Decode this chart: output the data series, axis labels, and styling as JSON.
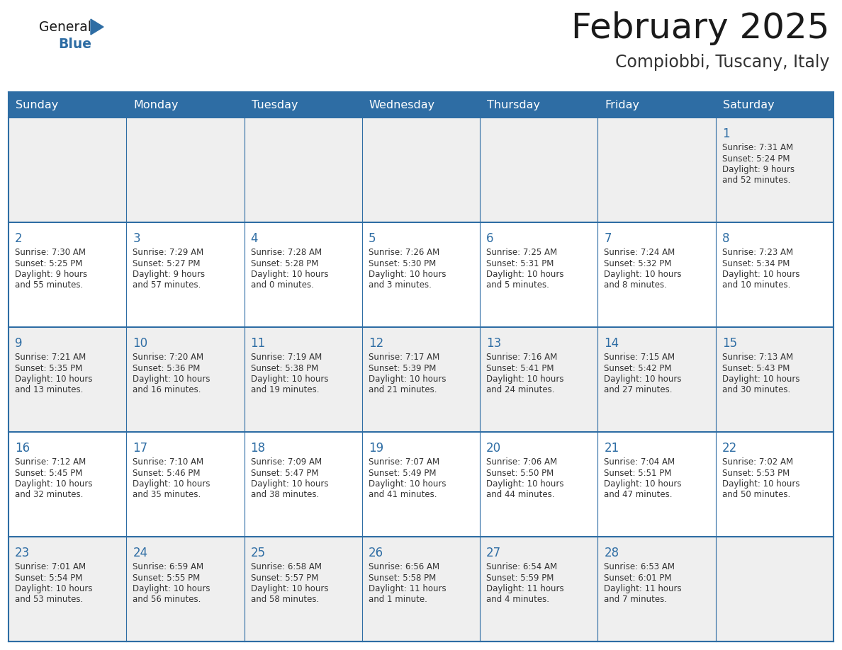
{
  "title": "February 2025",
  "subtitle": "Compiobbi, Tuscany, Italy",
  "days_of_week": [
    "Sunday",
    "Monday",
    "Tuesday",
    "Wednesday",
    "Thursday",
    "Friday",
    "Saturday"
  ],
  "header_bg": "#2E6DA4",
  "header_fg": "#FFFFFF",
  "row_bg_odd": "#EFEFEF",
  "row_bg_even": "#FFFFFF",
  "border_color": "#2E6DA4",
  "title_color": "#1a1a1a",
  "subtitle_color": "#333333",
  "day_num_color": "#2E6DA4",
  "text_color": "#333333",
  "logo_general_color": "#1a1a1a",
  "logo_blue_color": "#2E6DA4",
  "fig_width": 11.88,
  "fig_height": 9.18,
  "dpi": 100,
  "weeks": [
    [
      null,
      null,
      null,
      null,
      null,
      null,
      {
        "day": 1,
        "sunrise": "7:31 AM",
        "sunset": "5:24 PM",
        "daylight": "9 hours",
        "daylight2": "and 52 minutes."
      }
    ],
    [
      {
        "day": 2,
        "sunrise": "7:30 AM",
        "sunset": "5:25 PM",
        "daylight": "9 hours",
        "daylight2": "and 55 minutes."
      },
      {
        "day": 3,
        "sunrise": "7:29 AM",
        "sunset": "5:27 PM",
        "daylight": "9 hours",
        "daylight2": "and 57 minutes."
      },
      {
        "day": 4,
        "sunrise": "7:28 AM",
        "sunset": "5:28 PM",
        "daylight": "10 hours",
        "daylight2": "and 0 minutes."
      },
      {
        "day": 5,
        "sunrise": "7:26 AM",
        "sunset": "5:30 PM",
        "daylight": "10 hours",
        "daylight2": "and 3 minutes."
      },
      {
        "day": 6,
        "sunrise": "7:25 AM",
        "sunset": "5:31 PM",
        "daylight": "10 hours",
        "daylight2": "and 5 minutes."
      },
      {
        "day": 7,
        "sunrise": "7:24 AM",
        "sunset": "5:32 PM",
        "daylight": "10 hours",
        "daylight2": "and 8 minutes."
      },
      {
        "day": 8,
        "sunrise": "7:23 AM",
        "sunset": "5:34 PM",
        "daylight": "10 hours",
        "daylight2": "and 10 minutes."
      }
    ],
    [
      {
        "day": 9,
        "sunrise": "7:21 AM",
        "sunset": "5:35 PM",
        "daylight": "10 hours",
        "daylight2": "and 13 minutes."
      },
      {
        "day": 10,
        "sunrise": "7:20 AM",
        "sunset": "5:36 PM",
        "daylight": "10 hours",
        "daylight2": "and 16 minutes."
      },
      {
        "day": 11,
        "sunrise": "7:19 AM",
        "sunset": "5:38 PM",
        "daylight": "10 hours",
        "daylight2": "and 19 minutes."
      },
      {
        "day": 12,
        "sunrise": "7:17 AM",
        "sunset": "5:39 PM",
        "daylight": "10 hours",
        "daylight2": "and 21 minutes."
      },
      {
        "day": 13,
        "sunrise": "7:16 AM",
        "sunset": "5:41 PM",
        "daylight": "10 hours",
        "daylight2": "and 24 minutes."
      },
      {
        "day": 14,
        "sunrise": "7:15 AM",
        "sunset": "5:42 PM",
        "daylight": "10 hours",
        "daylight2": "and 27 minutes."
      },
      {
        "day": 15,
        "sunrise": "7:13 AM",
        "sunset": "5:43 PM",
        "daylight": "10 hours",
        "daylight2": "and 30 minutes."
      }
    ],
    [
      {
        "day": 16,
        "sunrise": "7:12 AM",
        "sunset": "5:45 PM",
        "daylight": "10 hours",
        "daylight2": "and 32 minutes."
      },
      {
        "day": 17,
        "sunrise": "7:10 AM",
        "sunset": "5:46 PM",
        "daylight": "10 hours",
        "daylight2": "and 35 minutes."
      },
      {
        "day": 18,
        "sunrise": "7:09 AM",
        "sunset": "5:47 PM",
        "daylight": "10 hours",
        "daylight2": "and 38 minutes."
      },
      {
        "day": 19,
        "sunrise": "7:07 AM",
        "sunset": "5:49 PM",
        "daylight": "10 hours",
        "daylight2": "and 41 minutes."
      },
      {
        "day": 20,
        "sunrise": "7:06 AM",
        "sunset": "5:50 PM",
        "daylight": "10 hours",
        "daylight2": "and 44 minutes."
      },
      {
        "day": 21,
        "sunrise": "7:04 AM",
        "sunset": "5:51 PM",
        "daylight": "10 hours",
        "daylight2": "and 47 minutes."
      },
      {
        "day": 22,
        "sunrise": "7:02 AM",
        "sunset": "5:53 PM",
        "daylight": "10 hours",
        "daylight2": "and 50 minutes."
      }
    ],
    [
      {
        "day": 23,
        "sunrise": "7:01 AM",
        "sunset": "5:54 PM",
        "daylight": "10 hours",
        "daylight2": "and 53 minutes."
      },
      {
        "day": 24,
        "sunrise": "6:59 AM",
        "sunset": "5:55 PM",
        "daylight": "10 hours",
        "daylight2": "and 56 minutes."
      },
      {
        "day": 25,
        "sunrise": "6:58 AM",
        "sunset": "5:57 PM",
        "daylight": "10 hours",
        "daylight2": "and 58 minutes."
      },
      {
        "day": 26,
        "sunrise": "6:56 AM",
        "sunset": "5:58 PM",
        "daylight": "11 hours",
        "daylight2": "and 1 minute."
      },
      {
        "day": 27,
        "sunrise": "6:54 AM",
        "sunset": "5:59 PM",
        "daylight": "11 hours",
        "daylight2": "and 4 minutes."
      },
      {
        "day": 28,
        "sunrise": "6:53 AM",
        "sunset": "6:01 PM",
        "daylight": "11 hours",
        "daylight2": "and 7 minutes."
      },
      null
    ]
  ]
}
